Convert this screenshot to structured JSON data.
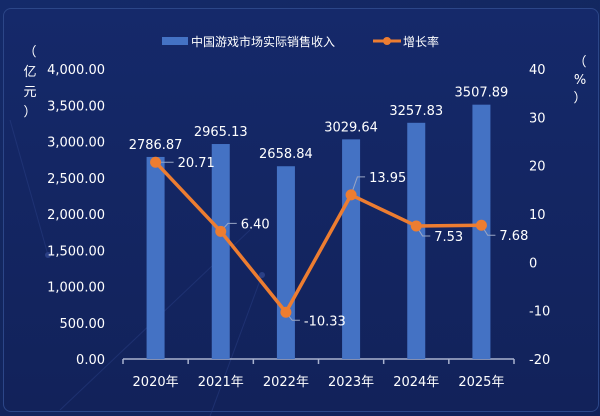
{
  "legend": {
    "bar_label": "中国游戏市场实际销售收入",
    "line_label": "增长率"
  },
  "axis_left": {
    "unit_label": [
      "（",
      "亿",
      "元",
      "）"
    ],
    "ticks": [
      "4,000.00",
      "3,500.00",
      "3,000.00",
      "2,500.00",
      "2,000.00",
      "1,500.00",
      "1,000.00",
      "500.00",
      "0.00"
    ]
  },
  "axis_right": {
    "unit_label": [
      "（",
      "%",
      "）"
    ],
    "ticks": [
      "40",
      "30",
      "20",
      "10",
      "0",
      "-10",
      "-20"
    ]
  },
  "colors": {
    "bar": "#4472c4",
    "line": "#ed7d31",
    "text": "#ffffff",
    "background": "#13265f"
  },
  "chart_data": {
    "type": "bar",
    "title": "",
    "categories": [
      "2020年",
      "2021年",
      "2022年",
      "2023年",
      "2024年",
      "2025年"
    ],
    "series": [
      {
        "name": "中国游戏市场实际销售收入",
        "type": "bar",
        "axis": "left",
        "values": [
          2786.87,
          2965.13,
          2658.84,
          3029.64,
          3257.83,
          3507.89
        ],
        "labels": [
          "2786.87",
          "2965.13",
          "2658.84",
          "3029.64",
          "3257.83",
          "3507.89"
        ]
      },
      {
        "name": "增长率",
        "type": "line",
        "axis": "right",
        "values": [
          20.71,
          6.4,
          -10.33,
          13.95,
          7.53,
          7.68
        ],
        "labels": [
          "20.71",
          "6.40",
          "-10.33",
          "13.95",
          "7.53",
          "7.68"
        ]
      }
    ],
    "xlabel": "",
    "ylabel": "（亿元）",
    "y2label": "（%）",
    "ylim": [
      0,
      4000
    ],
    "y2lim": [
      -20,
      40
    ],
    "grid": false,
    "legend_position": "top"
  }
}
